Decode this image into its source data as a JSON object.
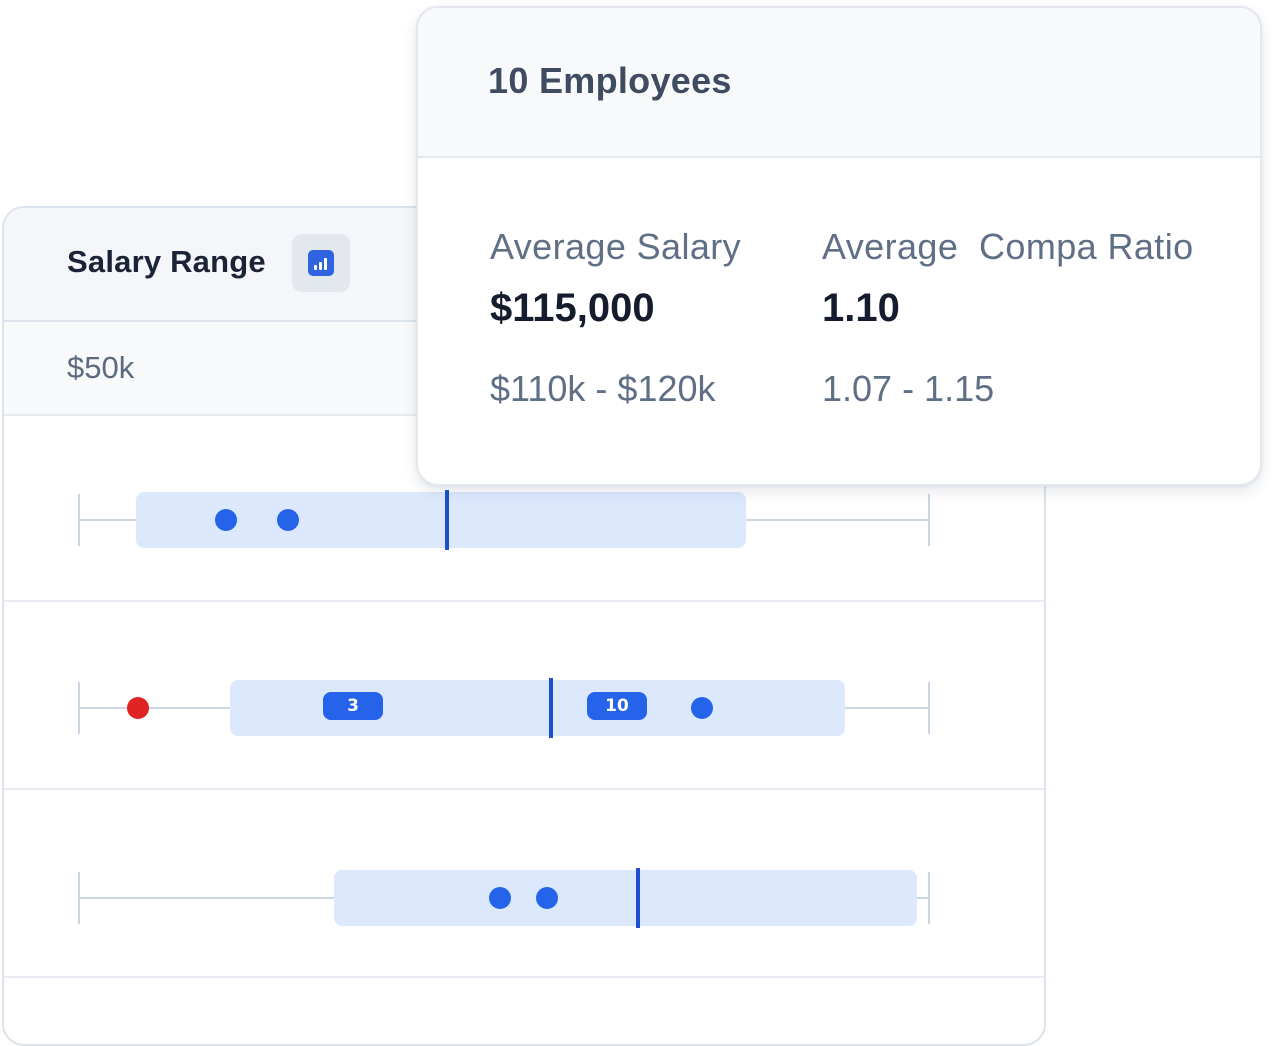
{
  "salary_range": {
    "title": "Salary Range",
    "axis_label": "$50k",
    "rows": [
      {
        "dots": 2,
        "badges": []
      },
      {
        "dots": 1,
        "outlier_dots": 1,
        "badges": [
          "3",
          "10"
        ]
      },
      {
        "dots": 2,
        "badges": []
      }
    ]
  },
  "summary": {
    "title": "10 Employees",
    "average_salary": {
      "label": "Average Salary",
      "value": "$115,000",
      "range": "$110k - $120k"
    },
    "average_compa_ratio": {
      "label": "Average  Compa Ratio",
      "value": "1.10",
      "range": "1.07 - 1.15"
    }
  },
  "colors": {
    "accent": "#2563eb",
    "median": "#1e4fce",
    "box_fill": "#dce9fd",
    "outlier": "#e02424"
  }
}
